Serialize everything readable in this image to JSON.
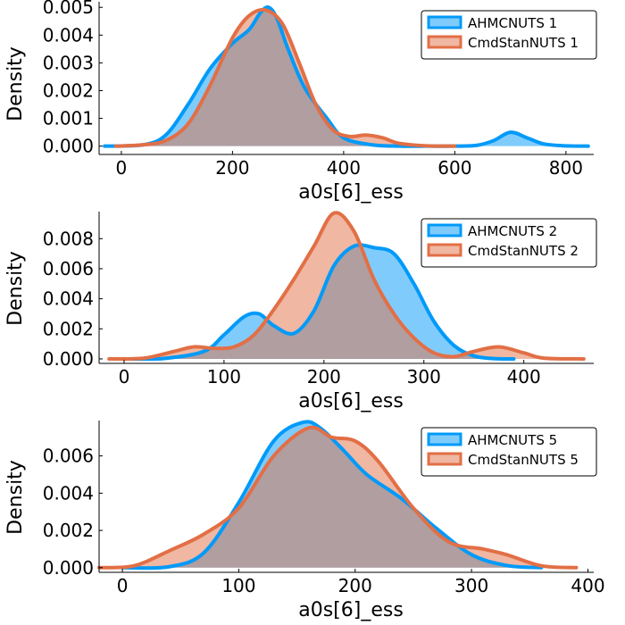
{
  "colors": {
    "ahmc": "#009af9",
    "cmdstan": "#e26f46",
    "ahmc_fill": "rgba(0,154,249,0.5)",
    "cmdstan_fill": "rgba(226,111,70,0.5)"
  },
  "chart_data": [
    {
      "type": "area",
      "xlabel": "a0s[6]_ess",
      "ylabel": "Density",
      "xlim": [
        -40,
        850
      ],
      "ylim": [
        -0.0003,
        0.0052
      ],
      "xticks": [
        0,
        200,
        400,
        600,
        800
      ],
      "xtick_labels": [
        "0",
        "200",
        "400",
        "600",
        "800"
      ],
      "yticks": [
        0,
        0.001,
        0.002,
        0.003,
        0.004,
        0.005
      ],
      "ytick_labels": [
        "0.000",
        "0.001",
        "0.002",
        "0.003",
        "0.004",
        "0.005"
      ],
      "legend_position": "top-right",
      "grid": false,
      "series": [
        {
          "name": "AHMCNUTS 1",
          "color_key": "ahmc",
          "x": [
            -30,
            40,
            80,
            120,
            160,
            200,
            230,
            250,
            265,
            280,
            300,
            330,
            370,
            400,
            450,
            500,
            550,
            600,
            640,
            670,
            700,
            730,
            760,
            800,
            840
          ],
          "y": [
            0,
            5e-05,
            0.0004,
            0.0015,
            0.0028,
            0.0037,
            0.0042,
            0.0048,
            0.005,
            0.0046,
            0.0035,
            0.0021,
            0.001,
            0.0003,
            5e-05,
            0,
            0,
            0,
            3e-05,
            0.0002,
            0.0005,
            0.0003,
            8e-05,
            1e-05,
            0
          ]
        },
        {
          "name": "CmdStanNUTS 1",
          "color_key": "cmdstan",
          "x": [
            -10,
            40,
            80,
            120,
            160,
            200,
            230,
            260,
            290,
            320,
            350,
            380,
            410,
            440,
            470,
            500,
            550,
            600
          ],
          "y": [
            0,
            5e-05,
            0.0002,
            0.0008,
            0.0022,
            0.0039,
            0.0047,
            0.0049,
            0.0044,
            0.003,
            0.0015,
            0.0006,
            0.00035,
            0.0004,
            0.0003,
            0.0001,
            1e-05,
            0
          ]
        }
      ]
    },
    {
      "type": "area",
      "xlabel": "a0s[6]_ess",
      "ylabel": "Density",
      "xlim": [
        -25,
        470
      ],
      "ylim": [
        -0.0003,
        0.0098
      ],
      "xticks": [
        0,
        100,
        200,
        300,
        400
      ],
      "xtick_labels": [
        "0",
        "100",
        "200",
        "300",
        "400"
      ],
      "yticks": [
        0,
        0.002,
        0.004,
        0.006,
        0.008
      ],
      "ytick_labels": [
        "0.000",
        "0.002",
        "0.004",
        "0.006",
        "0.008"
      ],
      "legend_position": "top-right",
      "grid": false,
      "series": [
        {
          "name": "AHMCNUTS 2",
          "color_key": "ahmc",
          "x": [
            0,
            40,
            80,
            100,
            120,
            135,
            150,
            170,
            190,
            210,
            230,
            250,
            270,
            290,
            310,
            330,
            350,
            370,
            390
          ],
          "y": [
            0,
            3e-05,
            0.0005,
            0.0016,
            0.0028,
            0.003,
            0.0022,
            0.0017,
            0.0032,
            0.0062,
            0.0075,
            0.0074,
            0.007,
            0.005,
            0.0025,
            0.0009,
            0.0002,
            2e-05,
            0
          ]
        },
        {
          "name": "CmdStanNUTS 2",
          "color_key": "cmdstan",
          "x": [
            -15,
            20,
            50,
            70,
            90,
            110,
            130,
            150,
            170,
            190,
            210,
            230,
            250,
            270,
            290,
            310,
            330,
            350,
            375,
            400,
            420,
            460
          ],
          "y": [
            0,
            5e-05,
            0.0005,
            0.0008,
            0.0007,
            0.0008,
            0.0016,
            0.0033,
            0.0053,
            0.0075,
            0.0097,
            0.0085,
            0.0053,
            0.003,
            0.0014,
            0.0004,
            0.00015,
            0.0005,
            0.0008,
            0.0004,
            5e-05,
            0
          ]
        }
      ]
    },
    {
      "type": "area",
      "xlabel": "a0s[6]_ess",
      "ylabel": "Density",
      "xlim": [
        -20,
        405
      ],
      "ylim": [
        -0.00025,
        0.0079
      ],
      "xticks": [
        0,
        100,
        200,
        300,
        400
      ],
      "xtick_labels": [
        "0",
        "100",
        "200",
        "300",
        "400"
      ],
      "yticks": [
        0,
        0.002,
        0.004,
        0.006
      ],
      "ytick_labels": [
        "0.000",
        "0.002",
        "0.004",
        "0.006"
      ],
      "legend_position": "top-right",
      "grid": false,
      "series": [
        {
          "name": "AHMCNUTS 5",
          "color_key": "ahmc",
          "x": [
            0,
            40,
            70,
            100,
            130,
            155,
            170,
            190,
            210,
            240,
            270,
            300,
            330,
            360
          ],
          "y": [
            0,
            5e-05,
            0.0008,
            0.0035,
            0.0068,
            0.0078,
            0.0075,
            0.0063,
            0.005,
            0.0037,
            0.0021,
            0.0007,
            0.00012,
            0
          ]
        },
        {
          "name": "CmdStanNUTS 5",
          "color_key": "cmdstan",
          "x": [
            -20,
            10,
            40,
            70,
            100,
            130,
            160,
            180,
            200,
            220,
            250,
            280,
            310,
            330,
            360,
            390
          ],
          "y": [
            0,
            0.0001,
            0.0009,
            0.0018,
            0.0032,
            0.006,
            0.0075,
            0.007,
            0.0068,
            0.0057,
            0.0032,
            0.0014,
            0.001,
            0.0007,
            0.0001,
            0
          ]
        }
      ]
    }
  ]
}
